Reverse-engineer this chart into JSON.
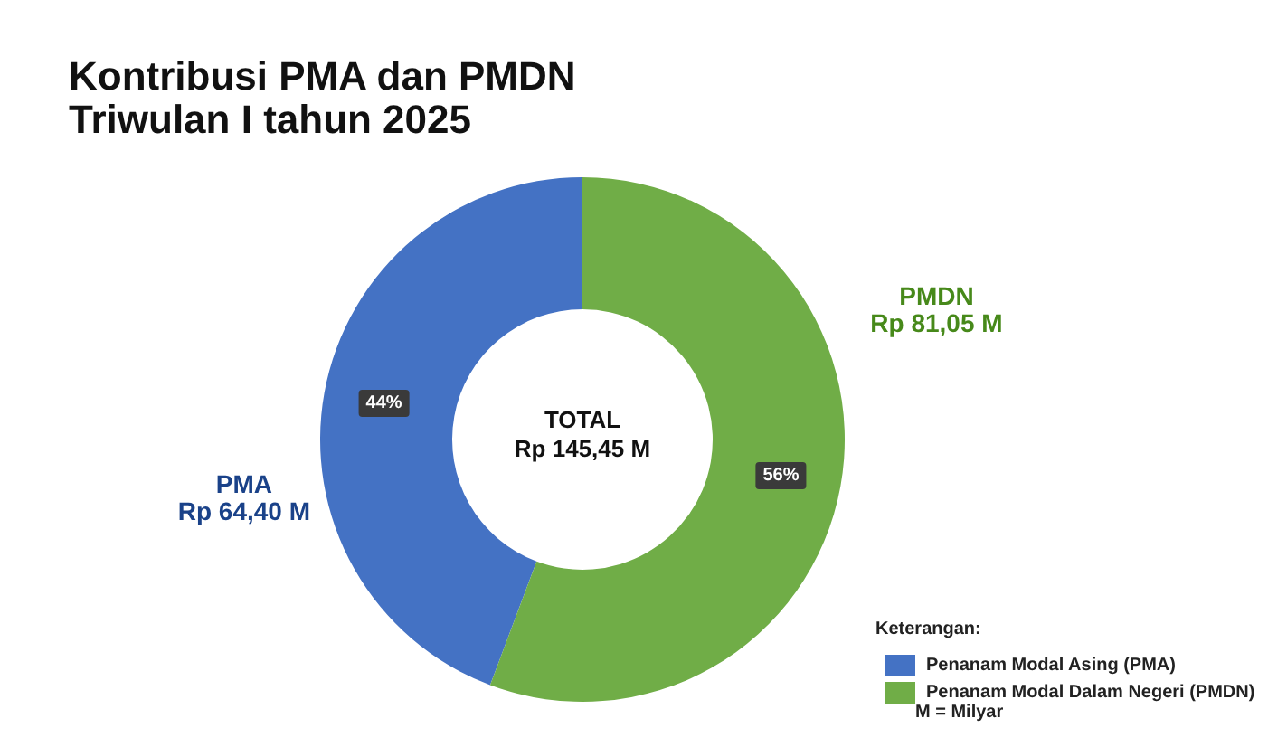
{
  "chart_data": {
    "type": "donut",
    "title": "Kontribusi PMA dan PMDN",
    "subtitle": "Triwulan I tahun 2025",
    "categories": [
      "Penanam Modal Asing (PMA)",
      "Penanam Modal Dalam Negeri (PMDN)"
    ],
    "values": [
      64.4,
      81.05
    ],
    "colors": [
      "#4472c4",
      "#70ad47"
    ],
    "value_labels": [
      "Rp 64,40 M",
      "Rp 81,05 M"
    ],
    "legend": "bottom right",
    "legend_title": "Keterangan:",
    "annotations": [
      {
        "text": "PMA",
        "x": "Penanam Modal Asing (PMA)"
      },
      {
        "text": "PMDN",
        "x": "Penanam Modal Dalam Negeri (PMDN)"
      },
      {
        "text": "44%",
        "x": "Penanam Modal Asing (PMA)"
      },
      {
        "text": "56%",
        "x": "Penanam Modal Dalam Negeri (PMDN)"
      },
      "TOTAL",
      "Rp 145,45 M",
      "M = Milyar"
    ]
  }
}
